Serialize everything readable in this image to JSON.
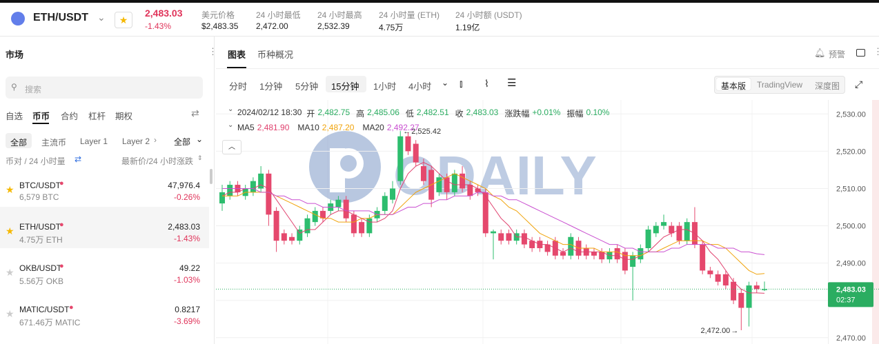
{
  "header": {
    "pair": "ETH/USDT",
    "price": "2,483.03",
    "change": "-1.43%",
    "stats": [
      {
        "label": "美元价格",
        "value": "$2,483.35"
      },
      {
        "label": "24 小时最低",
        "value": "2,472.00"
      },
      {
        "label": "24 小时最高",
        "value": "2,532.39"
      },
      {
        "label": "24 小时量 (ETH)",
        "value": "4.75万"
      },
      {
        "label": "24 小时额 (USDT)",
        "value": "1.19亿"
      }
    ]
  },
  "sidebar": {
    "title": "市场",
    "search": "搜索",
    "tabs": [
      "自选",
      "币币",
      "合约",
      "杠杆",
      "期权"
    ],
    "filters": [
      "全部",
      "主流币",
      "Layer 1",
      "Layer 2"
    ],
    "filter_all": "全部",
    "sort_left": "币对 / 24 小时量",
    "sort_right": "最新价/24 小时涨跌",
    "rows": [
      {
        "pair": "BTC/USDT",
        "volume": "6,579 BTC",
        "price": "47,976.4",
        "change": "-0.26%"
      },
      {
        "pair": "ETH/USDT",
        "volume": "4.75万 ETH",
        "price": "2,483.03",
        "change": "-1.43%"
      },
      {
        "pair": "OKB/USDT",
        "volume": "5.56万 OKB",
        "price": "49.22",
        "change": "-1.03%"
      },
      {
        "pair": "MATIC/USDT",
        "volume": "671.46万 MATIC",
        "price": "0.8217",
        "change": "-3.69%"
      }
    ]
  },
  "panel": {
    "tabs": [
      "图表",
      "币种概况"
    ],
    "alert": "预警",
    "intervals": [
      "分时",
      "1分钟",
      "5分钟",
      "15分钟",
      "1小时",
      "4小时"
    ],
    "views": [
      "基本版",
      "TradingView",
      "深度图"
    ],
    "date": "2024/02/12 18:30",
    "info": [
      {
        "label": "开",
        "value": "2,482.75"
      },
      {
        "label": "高",
        "value": "2,485.06"
      },
      {
        "label": "低",
        "value": "2,482.51"
      },
      {
        "label": "收",
        "value": "2,483.03"
      },
      {
        "label": "涨跌幅",
        "value": "+0.01%"
      },
      {
        "label": "振幅",
        "value": "0.10%"
      }
    ],
    "ma_legend": [
      {
        "name": "MA5",
        "value": "2,481.90"
      },
      {
        "name": "MA10",
        "value": "2,487.20"
      },
      {
        "name": "MA20",
        "value": "2,492.27"
      }
    ],
    "watermark": "ODAILY"
  },
  "chart_data": {
    "type": "candlestick",
    "up_color": "#2dbd6e",
    "down_color": "#e5486d",
    "open": [
      2506,
      2508,
      2511,
      2508,
      2509,
      2510,
      2514,
      2504,
      2498,
      2497,
      2496,
      2498,
      2501,
      2504,
      2504,
      2505,
      2507,
      2503,
      2501,
      2498,
      2502,
      2504,
      2507,
      2512,
      2524,
      2522,
      2516,
      2515,
      2509,
      2513,
      2509,
      2514,
      2511,
      2510,
      2509,
      2498,
      2498,
      2498,
      2496,
      2498,
      2496,
      2496,
      2495,
      2496,
      2493,
      2492,
      2496,
      2494,
      2493,
      2493,
      2491,
      2494,
      2493,
      2489,
      2491,
      2494,
      2498,
      2500,
      2500,
      2500,
      2496,
      2501,
      2495,
      2488,
      2487,
      2487,
      2485,
      2482,
      2478,
      2484,
      2482.75
    ],
    "high": [
      2511,
      2512,
      2512,
      2511,
      2513,
      2516,
      2515,
      2505,
      2499,
      2498,
      2500,
      2503,
      2505,
      2505,
      2507,
      2508,
      2508,
      2504,
      2502,
      2503,
      2505,
      2509,
      2512,
      2525.42,
      2525,
      2523,
      2518,
      2516,
      2514,
      2514,
      2515,
      2516,
      2512,
      2511,
      2510,
      2499,
      2499,
      2499,
      2499,
      2499,
      2497,
      2497,
      2496,
      2497,
      2494,
      2498,
      2497,
      2495,
      2494,
      2494,
      2494,
      2495,
      2494,
      2493,
      2495,
      2500,
      2501,
      2503,
      2501,
      2501,
      2502,
      2505,
      2496,
      2489,
      2488,
      2488,
      2486,
      2483,
      2485,
      2485,
      2485.06
    ],
    "low": [
      2504,
      2507,
      2508,
      2507,
      2508,
      2509,
      2500,
      2493,
      2495,
      2495,
      2495,
      2497,
      2500,
      2501,
      2503,
      2504,
      2501,
      2497,
      2497,
      2497,
      2501,
      2503,
      2506,
      2511,
      2519,
      2516,
      2511,
      2505,
      2508,
      2507,
      2508,
      2509,
      2507,
      2508,
      2497,
      2491,
      2495,
      2495,
      2495,
      2494,
      2493,
      2493,
      2492,
      2491,
      2491,
      2491,
      2491,
      2491,
      2491,
      2490,
      2490,
      2490,
      2487,
      2480,
      2490,
      2493,
      2497,
      2499,
      2497,
      2495,
      2495,
      2494,
      2487,
      2486,
      2484,
      2483,
      2479,
      2472,
      2473,
      2482,
      2482.51
    ],
    "close": [
      2509,
      2511,
      2509,
      2510,
      2512,
      2514,
      2503,
      2496,
      2496,
      2496,
      2499,
      2502,
      2504,
      2502,
      2506,
      2507,
      2502,
      2498,
      2498,
      2502,
      2504,
      2508,
      2510,
      2524,
      2520,
      2517,
      2512,
      2507,
      2513,
      2509,
      2514,
      2510,
      2508,
      2509,
      2498,
      2498.5,
      2496,
      2496,
      2498,
      2495,
      2494,
      2494,
      2493,
      2492,
      2492,
      2497,
      2492,
      2492,
      2492,
      2491,
      2493,
      2491,
      2488,
      2492,
      2494,
      2499,
      2500,
      2501,
      2498,
      2496,
      2501,
      2495,
      2488,
      2487,
      2485,
      2484,
      2480,
      2478,
      2484,
      2483,
      2483.03
    ],
    "series": [
      {
        "name": "MA5",
        "color": "#e0416e",
        "values": [
          2508,
          2509,
          2509,
          2510,
          2510,
          2511,
          2510,
          2507,
          2504,
          2501,
          2498,
          2499,
          2499,
          2501,
          2503,
          2504,
          2504,
          2503,
          2502,
          2501,
          2501,
          2502,
          2504,
          2510,
          2514,
          2516,
          2517,
          2516,
          2514,
          2512,
          2511,
          2511,
          2511,
          2510,
          2508,
          2505,
          2502,
          2500,
          2497,
          2497,
          2496,
          2495,
          2495,
          2494,
          2493,
          2494,
          2493,
          2493,
          2493,
          2493,
          2492,
          2492,
          2491,
          2491,
          2492,
          2493,
          2495,
          2497,
          2498,
          2499,
          2499,
          2498,
          2496,
          2493,
          2491,
          2488,
          2485,
          2483,
          2482,
          2482,
          2481.9
        ]
      },
      {
        "name": "MA10",
        "color": "#f0a30a",
        "values": [
          2508,
          2508,
          2508,
          2509,
          2509,
          2509,
          2509,
          2508,
          2507,
          2506,
          2505,
          2504,
          2503,
          2502,
          2502,
          2501,
          2501,
          2501,
          2502,
          2502,
          2503,
          2503,
          2503,
          2505,
          2507,
          2509,
          2510,
          2511,
          2512,
          2513,
          2514,
          2513,
          2512,
          2511,
          2510,
          2508,
          2507,
          2505,
          2504,
          2502,
          2500,
          2498,
          2497,
          2496,
          2495,
          2495,
          2494,
          2494,
          2494,
          2493,
          2493,
          2493,
          2492,
          2492,
          2492,
          2493,
          2493,
          2494,
          2495,
          2496,
          2496,
          2496,
          2496,
          2495,
          2495,
          2494,
          2492,
          2490,
          2488,
          2487,
          2487.2
        ]
      },
      {
        "name": "MA20",
        "color": "#c94fd0",
        "values": [
          2510,
          2510,
          2510,
          2510,
          2510,
          2509,
          2509,
          2508,
          2508,
          2507,
          2507,
          2506,
          2506,
          2505,
          2505,
          2505,
          2504,
          2504,
          2504,
          2504,
          2503,
          2503,
          2503,
          2504,
          2505,
          2505,
          2506,
          2506,
          2507,
          2507,
          2508,
          2508,
          2508,
          2509,
          2509,
          2508,
          2508,
          2507,
          2507,
          2506,
          2505,
          2504,
          2503,
          2502,
          2501,
          2500,
          2499,
          2498,
          2497,
          2496,
          2495,
          2495,
          2494,
          2494,
          2493,
          2493,
          2493,
          2493,
          2494,
          2494,
          2495,
          2495,
          2495,
          2495,
          2494,
          2494,
          2494,
          2493,
          2493,
          2492.5,
          2492.27
        ]
      }
    ],
    "ylim": [
      2468.3,
      2533.75
    ],
    "yticks": [
      {
        "value": 2470,
        "label": "2,470.00"
      },
      {
        "value": 2480,
        "label": "2,480.00"
      },
      {
        "value": 2490,
        "label": "2,490.00"
      },
      {
        "value": 2500,
        "label": "2,500.00"
      },
      {
        "value": 2510,
        "label": "2,510.00"
      },
      {
        "value": 2520,
        "label": "2,520.00"
      },
      {
        "value": 2530,
        "label": "2,530.00"
      }
    ],
    "grid": true,
    "high_label": "2,525.42",
    "low_label": "2,472.00",
    "last_price": 2483.03,
    "last_price_label": "2,483.03",
    "countdown": "02:37"
  }
}
